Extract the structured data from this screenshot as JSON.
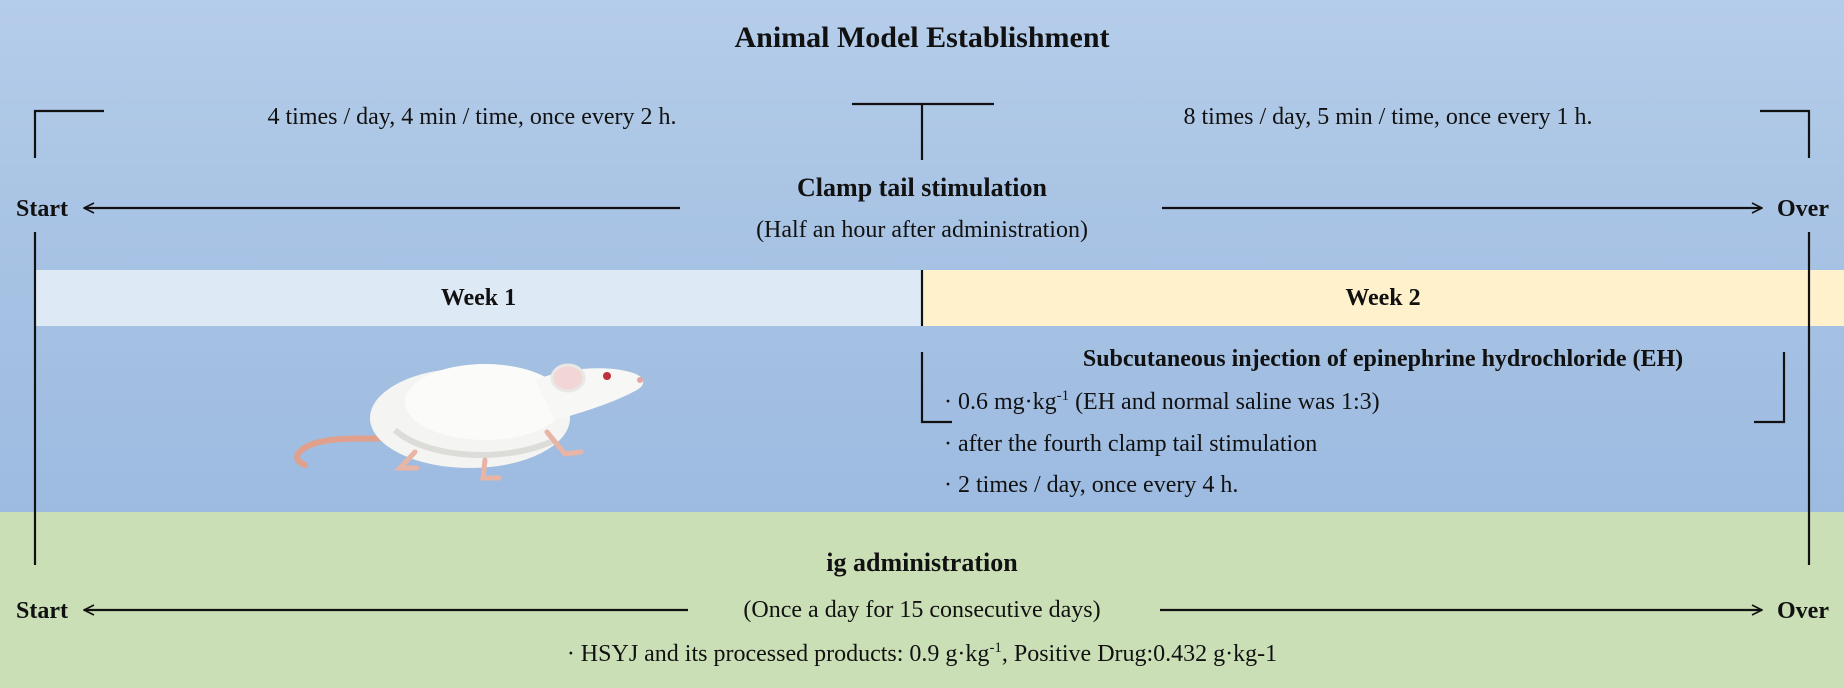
{
  "title": "Animal Model Establishment",
  "clamp": {
    "freq_week1": "4 times / day, 4 min / time, once every 2 h.",
    "freq_week2": "8 times / day, 5 min / time, once every 1 h.",
    "name": "Clamp tail stimulation",
    "note": "(Half an hour after administration)",
    "start_label": "Start",
    "over_label": "Over"
  },
  "weeks": {
    "week1": "Week 1",
    "week2": "Week 2"
  },
  "injection": {
    "title": "Subcutaneous injection of epinephrine hydrochloride (EH)",
    "dose_pre": "· 0.6 mg·kg",
    "dose_sup": "-1",
    "dose_post": " (EH and normal saline was 1:3)",
    "timing": "· after the fourth clamp tail stimulation",
    "frequency": "· 2 times / day, once every 4 h."
  },
  "administration": {
    "title": "ig administration",
    "note": "(Once a day for 15 consecutive days)",
    "start_label": "Start",
    "over_label": "Over",
    "dose_pre": "· HSYJ and its processed products: 0.9 g·kg",
    "dose_sup": "-1",
    "dose_post": ", Positive Drug:0.432 g·kg-1"
  },
  "colors": {
    "top_background": "#a9c4e4",
    "bottom_background": "#cadfb6",
    "week1_band": "#dde9f4",
    "week2_band": "#fef1cc"
  },
  "icons": {
    "animal": "white-rat-icon"
  }
}
